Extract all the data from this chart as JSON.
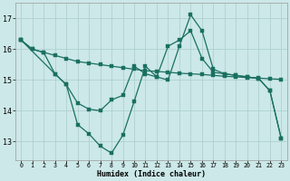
{
  "xlabel": "Humidex (Indice chaleur)",
  "bg_color": "#cce8e8",
  "grid_color": "#aacccc",
  "line_color": "#1a7060",
  "x_ticks": [
    0,
    1,
    2,
    3,
    4,
    5,
    6,
    7,
    8,
    9,
    10,
    11,
    12,
    13,
    14,
    15,
    16,
    17,
    18,
    19,
    20,
    21,
    22,
    23
  ],
  "y_ticks": [
    13,
    14,
    15,
    16,
    17
  ],
  "ylim": [
    12.4,
    17.5
  ],
  "xlim": [
    -0.5,
    23.5
  ],
  "line1_x": [
    0,
    1,
    2,
    3,
    4,
    5,
    6,
    7,
    8,
    9,
    10,
    11,
    12,
    13,
    14,
    15,
    16,
    17,
    18,
    19,
    20,
    21,
    22,
    23
  ],
  "line1_y": [
    16.3,
    16.0,
    15.9,
    15.8,
    15.7,
    15.6,
    15.55,
    15.5,
    15.45,
    15.4,
    15.35,
    15.3,
    15.28,
    15.25,
    15.22,
    15.2,
    15.18,
    15.15,
    15.12,
    15.1,
    15.08,
    15.06,
    15.04,
    15.02
  ],
  "line2_x": [
    0,
    1,
    2,
    3,
    4,
    5,
    6,
    7,
    8,
    9,
    10,
    11,
    12,
    13,
    14,
    15,
    16,
    17,
    18,
    19,
    20,
    21,
    22,
    23
  ],
  "line2_y": [
    16.3,
    16.0,
    15.9,
    15.2,
    14.85,
    14.25,
    14.05,
    14.0,
    14.35,
    14.5,
    15.45,
    15.2,
    15.1,
    16.1,
    16.3,
    16.6,
    15.7,
    15.25,
    15.2,
    15.15,
    15.1,
    15.05,
    14.65,
    13.1
  ],
  "line3_x": [
    0,
    3,
    4,
    5,
    6,
    7,
    8,
    9,
    10,
    11,
    12,
    13,
    14,
    15,
    16,
    17,
    18,
    19,
    20,
    21,
    22,
    23
  ],
  "line3_y": [
    16.3,
    15.2,
    14.85,
    13.55,
    13.25,
    12.85,
    12.62,
    13.2,
    14.3,
    15.45,
    15.1,
    15.0,
    16.1,
    17.12,
    16.6,
    15.35,
    15.2,
    15.15,
    15.1,
    15.05,
    14.65,
    13.1
  ]
}
